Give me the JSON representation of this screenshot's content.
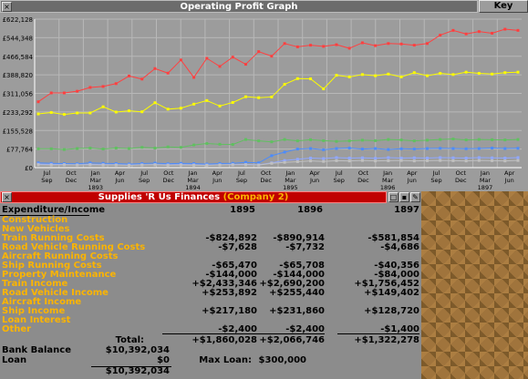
{
  "graph_window": {
    "title": "Operating Profit Graph",
    "key_label": "Key"
  },
  "chart_data": {
    "type": "line",
    "title": "Operating Profit Graph",
    "yticks": [
      "£622,128",
      "£544,348",
      "£466,584",
      "£388,820",
      "£311,056",
      "£233,292",
      "£155,528",
      "£77,764",
      "£0"
    ],
    "ylim": [
      0,
      622128
    ],
    "xtick_labels": [
      [
        "Jul",
        "Sep",
        ""
      ],
      [
        "Oct",
        "Dec",
        ""
      ],
      [
        "Jan",
        "Mar",
        "1893"
      ],
      [
        "Apr",
        "Jun",
        ""
      ],
      [
        "Jul",
        "Sep",
        ""
      ],
      [
        "Oct",
        "Dec",
        ""
      ],
      [
        "Jan",
        "Mar",
        "1894"
      ],
      [
        "Apr",
        "Jun",
        ""
      ],
      [
        "Jul",
        "Sep",
        ""
      ],
      [
        "Oct",
        "Dec",
        ""
      ],
      [
        "Jan",
        "Mar",
        "1895"
      ],
      [
        "Apr",
        "Jun",
        ""
      ],
      [
        "Jul",
        "Sep",
        ""
      ],
      [
        "Oct",
        "Dec",
        ""
      ],
      [
        "Jan",
        "Mar",
        "1896"
      ],
      [
        "Apr",
        "Jun",
        ""
      ],
      [
        "Jul",
        "Sep",
        ""
      ],
      [
        "Oct",
        "Dec",
        ""
      ],
      [
        "Jan",
        "Mar",
        "1897"
      ],
      [
        "Apr",
        "Jun",
        ""
      ]
    ],
    "series": [
      {
        "color": "#ff4040",
        "values": [
          276000,
          313000,
          313000,
          320000,
          336000,
          340000,
          352000,
          384000,
          371000,
          415000,
          396000,
          451000,
          378000,
          458000,
          424000,
          463000,
          433000,
          486000,
          467000,
          520000,
          506000,
          513000,
          508000,
          515000,
          500000,
          523000,
          511000,
          520000,
          518000,
          513000,
          520000,
          555000,
          575000,
          560000,
          570000,
          563000,
          580000,
          575000
        ]
      },
      {
        "color": "#fcfc00",
        "values": [
          225000,
          231000,
          223000,
          229000,
          229000,
          255000,
          233000,
          238000,
          234000,
          272000,
          245000,
          249000,
          266000,
          281000,
          258000,
          273000,
          297000,
          293000,
          296000,
          349000,
          373000,
          372000,
          330000,
          387000,
          380000,
          390000,
          385000,
          392000,
          380000,
          398000,
          385000,
          395000,
          390000,
          400000,
          395000,
          392000,
          398000,
          400000
        ]
      },
      {
        "color": "#60c060",
        "values": [
          79000,
          79000,
          76000,
          80000,
          82000,
          78000,
          82000,
          80000,
          85000,
          82000,
          87000,
          85000,
          95000,
          101000,
          98000,
          97000,
          118000,
          112000,
          108000,
          118000,
          112000,
          117000,
          113000,
          110000,
          112000,
          115000,
          113000,
          118000,
          116000,
          112000,
          115000,
          118000,
          120000,
          116000,
          118000,
          117000,
          116000,
          118000
        ]
      },
      {
        "color": "#4c8cfc",
        "values": [
          20000,
          18000,
          17000,
          16000,
          20000,
          18000,
          17000,
          15000,
          17000,
          19000,
          16000,
          18000,
          17000,
          15000,
          17000,
          18000,
          22000,
          20000,
          50000,
          65000,
          78000,
          80000,
          75000,
          80000,
          82000,
          78000,
          80000,
          76000,
          79000,
          78000,
          80000,
          81000,
          80000,
          79000,
          80000,
          82000,
          80000,
          81000
        ]
      },
      {
        "color": "#90a8ff",
        "values": [
          15000,
          14000,
          13000,
          12000,
          14000,
          13000,
          12000,
          11000,
          12000,
          13000,
          12000,
          13000,
          12000,
          11000,
          12000,
          13000,
          14000,
          12000,
          20000,
          30000,
          35000,
          40000,
          38000,
          42000,
          40000,
          41000,
          39000,
          42000,
          40000,
          41000,
          40000,
          42000,
          41000,
          40000,
          42000,
          41000,
          40000,
          42000
        ]
      },
      {
        "color": "#c0c0c0",
        "values": [
          12000,
          11000,
          12000,
          11000,
          12000,
          11000,
          11000,
          10000,
          11000,
          12000,
          10000,
          11000,
          10000,
          10000,
          11000,
          12000,
          12000,
          11000,
          18000,
          22000,
          25000,
          28000,
          26000,
          29000,
          28000,
          30000,
          28000,
          29000,
          30000,
          28000,
          29000,
          30000,
          29000,
          28000,
          30000,
          29000,
          28000,
          30000
        ]
      }
    ]
  },
  "finance_window": {
    "title": "Supplies 'R Us Finances",
    "title_suffix": "(Company 2)",
    "header_label": "Expenditure/Income",
    "years": [
      "1895",
      "1896",
      "1897"
    ],
    "rows": [
      {
        "label": "Construction",
        "v": [
          "",
          "",
          ""
        ]
      },
      {
        "label": "New Vehicles",
        "v": [
          "",
          "",
          ""
        ]
      },
      {
        "label": "Train Running Costs",
        "v": [
          "-$824,892",
          "-$890,914",
          "-$581,854"
        ]
      },
      {
        "label": "Road Vehicle Running Costs",
        "v": [
          "-$7,628",
          "-$7,732",
          "-$4,686"
        ]
      },
      {
        "label": "Aircraft Running Costs",
        "v": [
          "",
          "",
          ""
        ]
      },
      {
        "label": "Ship Running Costs",
        "v": [
          "-$65,470",
          "-$65,708",
          "-$40,356"
        ]
      },
      {
        "label": "Property Maintenance",
        "v": [
          "-$144,000",
          "-$144,000",
          "-$84,000"
        ]
      },
      {
        "label": "Train Income",
        "v": [
          "+$2,433,346",
          "+$2,690,200",
          "+$1,756,452"
        ]
      },
      {
        "label": "Road Vehicle Income",
        "v": [
          "+$253,892",
          "+$255,440",
          "+$149,402"
        ]
      },
      {
        "label": "Aircraft Income",
        "v": [
          "",
          "",
          ""
        ]
      },
      {
        "label": "Ship Income",
        "v": [
          "+$217,180",
          "+$231,860",
          "+$128,720"
        ]
      },
      {
        "label": "Loan Interest",
        "v": [
          "",
          "",
          ""
        ]
      },
      {
        "label": "Other",
        "v": [
          "-$2,400",
          "-$2,400",
          "-$1,400"
        ]
      }
    ],
    "total_label": "Total:",
    "totals": [
      "+$1,860,028",
      "+$2,066,746",
      "+$1,322,278"
    ],
    "bank_balance_label": "Bank Balance",
    "bank_balance": "$10,392,034",
    "loan_label": "Loan",
    "loan": "$0",
    "max_loan_label": "Max Loan:",
    "max_loan": "$300,000",
    "net": "$10,392,034"
  }
}
